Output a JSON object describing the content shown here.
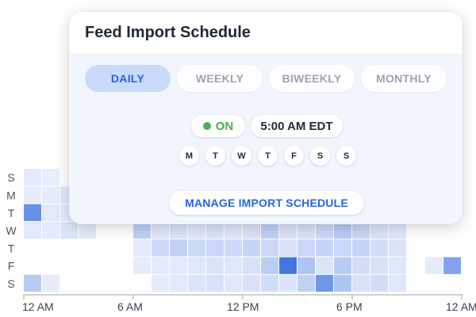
{
  "schedule": {
    "title": "Feed Import Schedule",
    "tabs": [
      {
        "label": "DAILY",
        "active": true
      },
      {
        "label": "WEEKLY",
        "active": false
      },
      {
        "label": "BIWEEKLY",
        "active": false
      },
      {
        "label": "MONTHLY",
        "active": false
      }
    ],
    "status_label": "ON",
    "time_label": "5:00 AM EDT",
    "days": [
      "M",
      "T",
      "W",
      "T",
      "F",
      "S",
      "S"
    ],
    "manage_label": "MANAGE IMPORT SCHEDULE"
  },
  "colors": {
    "accent": "#2563eb",
    "on_green": "#4caf50",
    "active_tab_bg": "#c9dbf8",
    "heat_max": "#3b6fe0"
  },
  "chart_data": {
    "type": "heatmap",
    "rows": [
      "S",
      "M",
      "T",
      "W",
      "T",
      "F",
      "S"
    ],
    "x_ticks": [
      "12 AM",
      "6 AM",
      "12 PM",
      "6 PM",
      "12 AM"
    ],
    "hours": 24,
    "cells": [
      [
        0,
        0,
        0.05
      ],
      [
        0,
        1,
        0.03
      ],
      [
        1,
        0,
        0.04
      ],
      [
        1,
        1,
        0.05
      ],
      [
        1,
        2,
        0.08
      ],
      [
        2,
        0,
        0.75
      ],
      [
        2,
        1,
        0.06
      ],
      [
        2,
        2,
        0.05
      ],
      [
        3,
        0,
        0.06
      ],
      [
        3,
        1,
        0.05
      ],
      [
        3,
        2,
        0.1
      ],
      [
        3,
        3,
        0.04
      ],
      [
        3,
        6,
        0.25
      ],
      [
        3,
        7,
        0.08
      ],
      [
        3,
        8,
        0.1
      ],
      [
        3,
        9,
        0.08
      ],
      [
        3,
        10,
        0.1
      ],
      [
        3,
        11,
        0.08
      ],
      [
        3,
        12,
        0.1
      ],
      [
        3,
        13,
        0.25
      ],
      [
        3,
        14,
        0.1
      ],
      [
        3,
        15,
        0.12
      ],
      [
        3,
        16,
        0.18
      ],
      [
        3,
        17,
        0.3
      ],
      [
        3,
        18,
        0.2
      ],
      [
        3,
        19,
        0.1
      ],
      [
        3,
        20,
        0.08
      ],
      [
        4,
        6,
        0.05
      ],
      [
        4,
        7,
        0.2
      ],
      [
        4,
        8,
        0.25
      ],
      [
        4,
        9,
        0.18
      ],
      [
        4,
        10,
        0.2
      ],
      [
        4,
        11,
        0.18
      ],
      [
        4,
        12,
        0.22
      ],
      [
        4,
        13,
        0.2
      ],
      [
        4,
        14,
        0.12
      ],
      [
        4,
        15,
        0.2
      ],
      [
        4,
        16,
        0.22
      ],
      [
        4,
        17,
        0.2
      ],
      [
        4,
        18,
        0.22
      ],
      [
        4,
        19,
        0.15
      ],
      [
        4,
        20,
        0.1
      ],
      [
        5,
        6,
        0.04
      ],
      [
        5,
        7,
        0.05
      ],
      [
        5,
        8,
        0.05
      ],
      [
        5,
        9,
        0.08
      ],
      [
        5,
        10,
        0.1
      ],
      [
        5,
        11,
        0.08
      ],
      [
        5,
        12,
        0.12
      ],
      [
        5,
        13,
        0.28
      ],
      [
        5,
        14,
        0.95
      ],
      [
        5,
        15,
        0.35
      ],
      [
        5,
        16,
        0.1
      ],
      [
        5,
        17,
        0.3
      ],
      [
        5,
        18,
        0.15
      ],
      [
        5,
        19,
        0.12
      ],
      [
        5,
        20,
        0.08
      ],
      [
        5,
        22,
        0.05
      ],
      [
        5,
        23,
        0.6
      ],
      [
        6,
        0,
        0.3
      ],
      [
        6,
        1,
        0.04
      ],
      [
        6,
        7,
        0.04
      ],
      [
        6,
        8,
        0.06
      ],
      [
        6,
        9,
        0.1
      ],
      [
        6,
        10,
        0.12
      ],
      [
        6,
        11,
        0.08
      ],
      [
        6,
        12,
        0.12
      ],
      [
        6,
        13,
        0.15
      ],
      [
        6,
        14,
        0.1
      ],
      [
        6,
        15,
        0.25
      ],
      [
        6,
        16,
        0.7
      ],
      [
        6,
        17,
        0.35
      ],
      [
        6,
        18,
        0.12
      ],
      [
        6,
        19,
        0.15
      ],
      [
        6,
        20,
        0.08
      ]
    ]
  }
}
